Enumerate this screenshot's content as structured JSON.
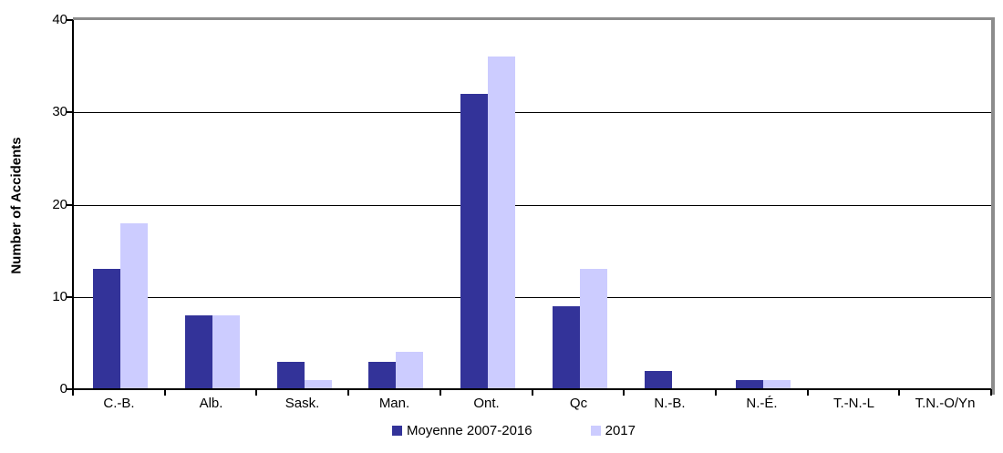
{
  "chart_data": {
    "type": "bar",
    "title": "",
    "xlabel": "",
    "ylabel": "Number of Accidents",
    "ylim": [
      0,
      40
    ],
    "yticks": [
      0,
      10,
      20,
      30,
      40
    ],
    "grid": "horizontal",
    "legend_position": "bottom-center",
    "categories": [
      "C.-B.",
      "Alb.",
      "Sask.",
      "Man.",
      "Ont.",
      "Qc",
      "N.-B.",
      "N.-É.",
      "T.-N.-L",
      "T.N.-O/Yn"
    ],
    "series": [
      {
        "name": "Moyenne 2007-2016",
        "color": "#333399",
        "values": [
          13,
          8,
          3,
          3,
          32,
          9,
          2,
          1,
          0,
          0
        ]
      },
      {
        "name": "2017",
        "color": "#CCCCFF",
        "values": [
          18,
          8,
          1,
          4,
          36,
          13,
          0,
          1,
          0,
          0
        ]
      }
    ],
    "colors": {
      "axis": "#000000",
      "gridline": "#000000",
      "plot_border": "#8C8C8C",
      "background": "#FFFFFF",
      "text": "#000000"
    }
  }
}
